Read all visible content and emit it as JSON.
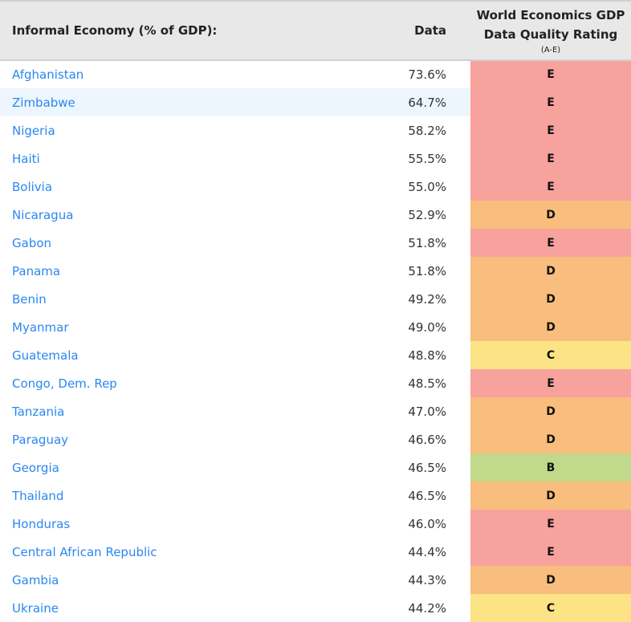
{
  "header": {
    "name": "Informal Economy (% of GDP):",
    "data": "Data",
    "rating_line1": "World Economics GDP",
    "rating_line2": "Data Quality Rating",
    "rating_sub": "(A-E)"
  },
  "rating_colors": {
    "E": "#f8a29d",
    "D": "#f9bd7d",
    "C": "#fbe386",
    "B": "#c1d98a"
  },
  "rows": [
    {
      "country": "Afghanistan",
      "value": "73.6%",
      "rating": "E"
    },
    {
      "country": "Zimbabwe",
      "value": "64.7%",
      "rating": "E"
    },
    {
      "country": "Nigeria",
      "value": "58.2%",
      "rating": "E"
    },
    {
      "country": "Haiti",
      "value": "55.5%",
      "rating": "E"
    },
    {
      "country": "Bolivia",
      "value": "55.0%",
      "rating": "E"
    },
    {
      "country": "Nicaragua",
      "value": "52.9%",
      "rating": "D"
    },
    {
      "country": "Gabon",
      "value": "51.8%",
      "rating": "E"
    },
    {
      "country": "Panama",
      "value": "51.8%",
      "rating": "D"
    },
    {
      "country": "Benin",
      "value": "49.2%",
      "rating": "D"
    },
    {
      "country": "Myanmar",
      "value": "49.0%",
      "rating": "D"
    },
    {
      "country": "Guatemala",
      "value": "48.8%",
      "rating": "C"
    },
    {
      "country": "Congo, Dem. Rep",
      "value": "48.5%",
      "rating": "E"
    },
    {
      "country": "Tanzania",
      "value": "47.0%",
      "rating": "D"
    },
    {
      "country": "Paraguay",
      "value": "46.6%",
      "rating": "D"
    },
    {
      "country": "Georgia",
      "value": "46.5%",
      "rating": "B"
    },
    {
      "country": "Thailand",
      "value": "46.5%",
      "rating": "D"
    },
    {
      "country": "Honduras",
      "value": "46.0%",
      "rating": "E"
    },
    {
      "country": "Central African Republic",
      "value": "44.4%",
      "rating": "E"
    },
    {
      "country": "Gambia",
      "value": "44.3%",
      "rating": "D"
    },
    {
      "country": "Ukraine",
      "value": "44.2%",
      "rating": "C"
    }
  ]
}
